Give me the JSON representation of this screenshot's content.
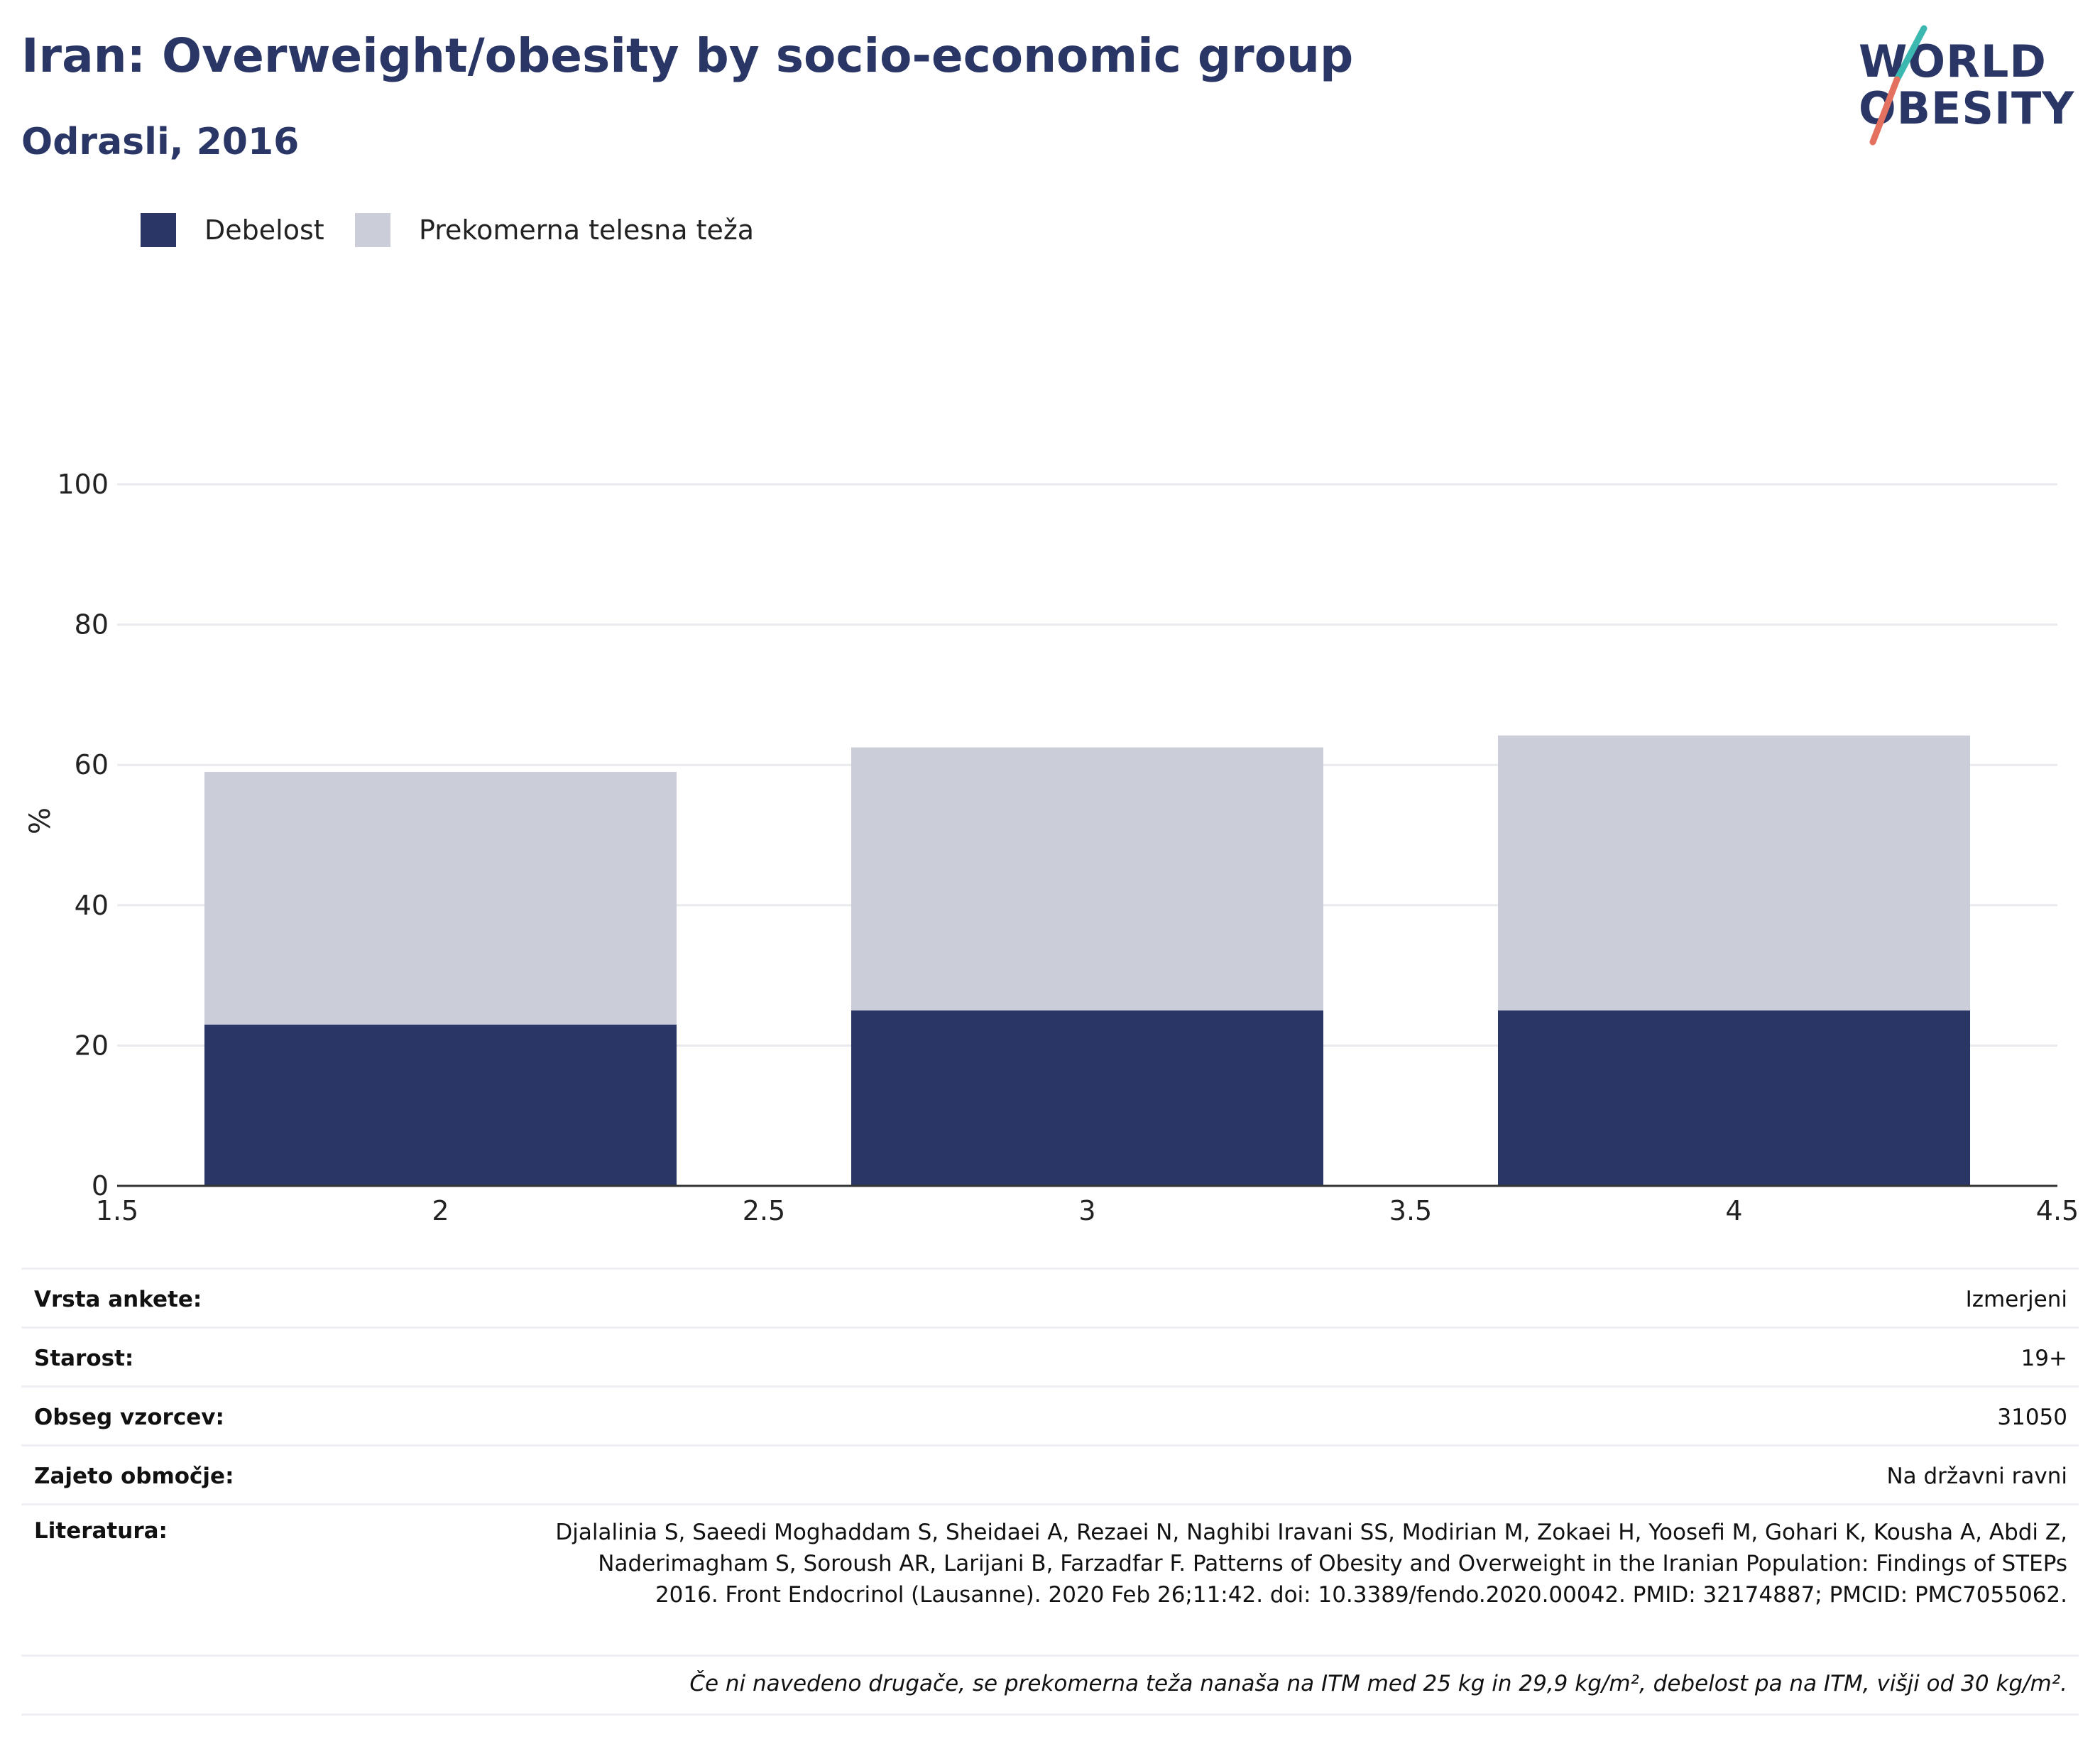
{
  "header": {
    "title": "Iran: Overweight/obesity by socio-economic group",
    "subtitle": "Odrasli, 2016"
  },
  "logo": {
    "line1": "WORLD",
    "line2": "OBESITY",
    "accent_teal": "#3bb8b0",
    "accent_red": "#e4705f"
  },
  "colors": {
    "obesity": "#2a3766",
    "overweight": "#cbcdd8",
    "grid": "#e8eaee",
    "axis": "#333333"
  },
  "chart_data": {
    "type": "bar",
    "stacked": true,
    "x": [
      2,
      3,
      4
    ],
    "series": [
      {
        "name": "Debelost",
        "values": [
          23,
          25,
          25
        ],
        "color": "#2a3766"
      },
      {
        "name": "Prekomerna telesna teža",
        "values": [
          36,
          37.5,
          39.2
        ],
        "color": "#cbcdd8"
      }
    ],
    "totals": [
      59,
      62.5,
      64.2
    ],
    "xlim": [
      1.5,
      4.5
    ],
    "ylim": [
      0,
      100
    ],
    "xticks": [
      "1.5",
      "2",
      "2.5",
      "3",
      "3.5",
      "4",
      "4.5"
    ],
    "yticks": [
      "0",
      "20",
      "40",
      "60",
      "80",
      "100"
    ],
    "ylabel": "%",
    "xlabel": "",
    "grid": true,
    "legend_position": "top-left"
  },
  "info": {
    "survey_type": {
      "label": "Vrsta ankete:",
      "value": "Izmerjeni"
    },
    "age": {
      "label": "Starost:",
      "value": "19+"
    },
    "sample_size": {
      "label": "Obseg vzorcev:",
      "value": "31050"
    },
    "area": {
      "label": "Zajeto območje:",
      "value": "Na državni ravni"
    },
    "reference": {
      "label": "Literatura:",
      "value": "Djalalinia S, Saeedi Moghaddam S, Sheidaei A, Rezaei N, Naghibi Iravani SS, Modirian M, Zokaei H, Yoosefi M, Gohari K, Kousha A, Abdi Z, Naderimagham S, Soroush AR, Larijani B, Farzadfar F. Patterns of Obesity and Overweight in the Iranian Population: Findings of STEPs 2016. Front Endocrinol (Lausanne). 2020 Feb 26;11:42. doi: 10.3389/fendo.2020.00042. PMID: 32174887; PMCID: PMC7055062."
    },
    "footnote": "Če ni navedeno drugače, se prekomerna teža nanaša na ITM med 25 kg in 29,9 kg/m², debelost pa na ITM, višji od 30 kg/m²."
  }
}
